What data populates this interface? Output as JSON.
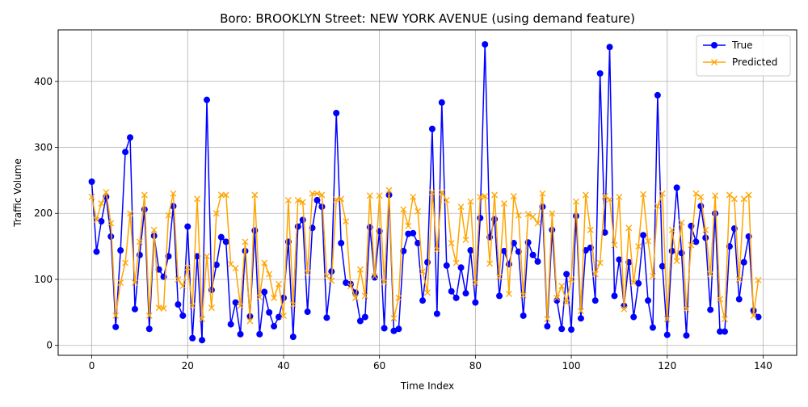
{
  "chart_data": {
    "type": "line",
    "title": "Boro: BROOKLYN Street: NEW YORK AVENUE (using demand feature)",
    "xlabel": "Time Index",
    "ylabel": "Traffic Volume",
    "xlim": [
      -7,
      147
    ],
    "ylim": [
      -15,
      478
    ],
    "xticks": [
      0,
      20,
      40,
      60,
      80,
      100,
      120,
      140
    ],
    "yticks": [
      0,
      100,
      200,
      300,
      400
    ],
    "grid": true,
    "legend_position": "top-right",
    "series": [
      {
        "name": "True",
        "color": "#0000ff",
        "marker": "circle",
        "values": [
          248,
          142,
          188,
          225,
          165,
          28,
          144,
          293,
          315,
          55,
          137,
          206,
          25,
          166,
          115,
          104,
          135,
          211,
          62,
          45,
          180,
          11,
          135,
          8,
          372,
          84,
          122,
          164,
          157,
          32,
          65,
          17,
          143,
          44,
          174,
          17,
          81,
          50,
          29,
          43,
          72,
          157,
          13,
          180,
          190,
          51,
          178,
          220,
          210,
          42,
          112,
          352,
          155,
          95,
          93,
          80,
          37,
          43,
          179,
          103,
          173,
          26,
          228,
          22,
          25,
          143,
          169,
          170,
          155,
          68,
          126,
          328,
          48,
          368,
          121,
          82,
          72,
          118,
          79,
          144,
          65,
          193,
          456,
          164,
          191,
          75,
          143,
          123,
          155,
          142,
          45,
          156,
          137,
          127,
          210,
          29,
          175,
          68,
          25,
          108,
          24,
          196,
          41,
          144,
          148,
          68,
          412,
          171,
          452,
          75,
          130,
          60,
          126,
          43,
          94,
          167,
          68,
          27,
          379,
          120,
          16,
          143,
          239,
          140,
          15,
          181,
          157,
          211,
          163,
          54,
          200,
          21,
          21,
          150,
          177,
          70,
          126,
          165,
          53,
          43
        ]
      },
      {
        "name": "Predicted",
        "color": "#ffa500",
        "marker": "x",
        "values": [
          225,
          190,
          215,
          232,
          185,
          45,
          95,
          125,
          200,
          95,
          157,
          228,
          45,
          175,
          57,
          56,
          197,
          230,
          100,
          90,
          118,
          60,
          222,
          40,
          135,
          57,
          200,
          228,
          228,
          123,
          117,
          60,
          157,
          37,
          228,
          73,
          125,
          108,
          72,
          93,
          45,
          220,
          62,
          220,
          217,
          110,
          230,
          230,
          228,
          105,
          98,
          221,
          222,
          188,
          90,
          72,
          115,
          75,
          227,
          105,
          227,
          96,
          235,
          41,
          72,
          206,
          181,
          225,
          203,
          112,
          80,
          232,
          145,
          232,
          220,
          155,
          125,
          210,
          160,
          218,
          95,
          225,
          226,
          124,
          228,
          104,
          215,
          78,
          226,
          197,
          76,
          199,
          195,
          185,
          230,
          40,
          200,
          72,
          90,
          65,
          100,
          218,
          52,
          228,
          175,
          108,
          125,
          226,
          221,
          152,
          225,
          55,
          178,
          95,
          150,
          229,
          158,
          105,
          211,
          230,
          40,
          175,
          128,
          186,
          55,
          152,
          230,
          225,
          175,
          108,
          227,
          70,
          40,
          228,
          222,
          100,
          222,
          228,
          45,
          99
        ]
      }
    ]
  }
}
